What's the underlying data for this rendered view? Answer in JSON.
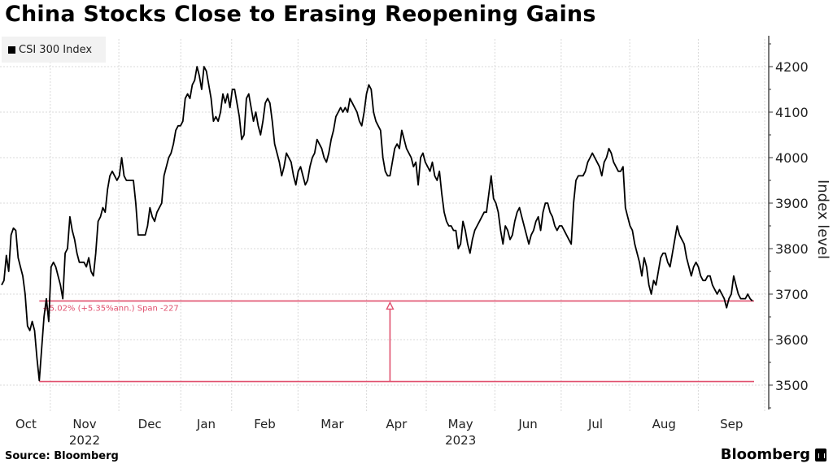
{
  "header": {
    "title": "China Stocks Close to Erasing Reopening Gains"
  },
  "legend": {
    "label": "CSI 300 Index",
    "color": "#000000"
  },
  "footer": {
    "source": "Source: Bloomberg",
    "brand": "Bloomberg",
    "brand_icon": "bloomberg-chart-icon"
  },
  "chart_data": {
    "type": "line",
    "title": "China Stocks Close to Erasing Reopening Gains",
    "ylabel": "Index level",
    "xlabel": "",
    "ylim": [
      3450,
      4260
    ],
    "yticks": [
      3500,
      3600,
      3700,
      3800,
      3900,
      4000,
      4100,
      4200
    ],
    "x_month_labels": [
      "Oct",
      "Nov",
      "Dec",
      "Jan",
      "Feb",
      "Mar",
      "Apr",
      "May",
      "Jun",
      "Jul",
      "Aug",
      "Sep"
    ],
    "year_labels": [
      {
        "label": "2022",
        "under": "Nov"
      },
      {
        "label": "2023",
        "under": "May"
      }
    ],
    "month_start_index": [
      0,
      22,
      53,
      81,
      104,
      134,
      165,
      192,
      223,
      253,
      284,
      315,
      345
    ],
    "grid": true,
    "series": [
      {
        "name": "CSI 300 Index",
        "color": "#000000",
        "values": [
          3720,
          3730,
          3785,
          3750,
          3830,
          3845,
          3840,
          3780,
          3760,
          3740,
          3700,
          3630,
          3620,
          3640,
          3620,
          3560,
          3510,
          3580,
          3650,
          3690,
          3640,
          3760,
          3770,
          3760,
          3740,
          3720,
          3690,
          3790,
          3800,
          3870,
          3840,
          3820,
          3790,
          3770,
          3770,
          3770,
          3760,
          3780,
          3750,
          3740,
          3790,
          3860,
          3870,
          3890,
          3880,
          3930,
          3960,
          3970,
          3960,
          3950,
          3960,
          4000,
          3960,
          3950,
          3950,
          3950,
          3950,
          3900,
          3830,
          3830,
          3830,
          3830,
          3850,
          3890,
          3870,
          3860,
          3880,
          3890,
          3900,
          3960,
          3980,
          4000,
          4010,
          4030,
          4060,
          4070,
          4070,
          4080,
          4130,
          4140,
          4130,
          4160,
          4170,
          4200,
          4180,
          4150,
          4200,
          4190,
          4160,
          4130,
          4080,
          4090,
          4080,
          4100,
          4140,
          4120,
          4140,
          4110,
          4150,
          4150,
          4120,
          4090,
          4040,
          4050,
          4130,
          4140,
          4110,
          4080,
          4100,
          4070,
          4050,
          4080,
          4120,
          4130,
          4120,
          4080,
          4030,
          4010,
          3990,
          3960,
          3980,
          4010,
          4000,
          3990,
          3960,
          3940,
          3970,
          3980,
          3960,
          3940,
          3950,
          3980,
          4000,
          4010,
          4040,
          4030,
          4020,
          4000,
          3990,
          4010,
          4040,
          4060,
          4090,
          4100,
          4110,
          4100,
          4110,
          4100,
          4130,
          4120,
          4110,
          4100,
          4080,
          4070,
          4100,
          4140,
          4160,
          4150,
          4100,
          4080,
          4070,
          4060,
          4000,
          3970,
          3960,
          3960,
          3990,
          4020,
          4030,
          4020,
          4060,
          4040,
          4020,
          4010,
          4000,
          3980,
          3990,
          3940,
          4000,
          4010,
          3990,
          3980,
          3970,
          3990,
          3960,
          3950,
          3970,
          3920,
          3880,
          3860,
          3850,
          3850,
          3840,
          3840,
          3800,
          3810,
          3860,
          3840,
          3810,
          3790,
          3820,
          3840,
          3850,
          3860,
          3870,
          3880,
          3880,
          3920,
          3960,
          3910,
          3900,
          3880,
          3840,
          3810,
          3850,
          3840,
          3820,
          3830,
          3860,
          3880,
          3890,
          3870,
          3850,
          3830,
          3810,
          3830,
          3840,
          3860,
          3870,
          3840,
          3880,
          3900,
          3900,
          3880,
          3870,
          3850,
          3840,
          3850,
          3850,
          3840,
          3830,
          3820,
          3810,
          3900,
          3950,
          3960,
          3960,
          3960,
          3970,
          3990,
          4000,
          4010,
          4000,
          3990,
          3980,
          3960,
          3990,
          4000,
          4020,
          4010,
          3990,
          3980,
          3970,
          3970,
          3980,
          3890,
          3870,
          3850,
          3840,
          3810,
          3790,
          3770,
          3740,
          3780,
          3760,
          3720,
          3700,
          3730,
          3720,
          3750,
          3780,
          3790,
          3790,
          3770,
          3760,
          3790,
          3820,
          3850,
          3830,
          3820,
          3810,
          3780,
          3760,
          3740,
          3760,
          3770,
          3760,
          3740,
          3730,
          3730,
          3740,
          3740,
          3720,
          3710,
          3700,
          3710,
          3700,
          3690,
          3670,
          3690,
          3700,
          3740,
          3720,
          3700,
          3690,
          3690,
          3690,
          3700,
          3690,
          3685
        ]
      }
    ],
    "annotation": {
      "text": "+5.02% (+5.35%ann.) Span -227",
      "low": 3508,
      "high": 3685,
      "low_index": 16,
      "arrow_index": 165,
      "color": "#e0506e"
    }
  }
}
